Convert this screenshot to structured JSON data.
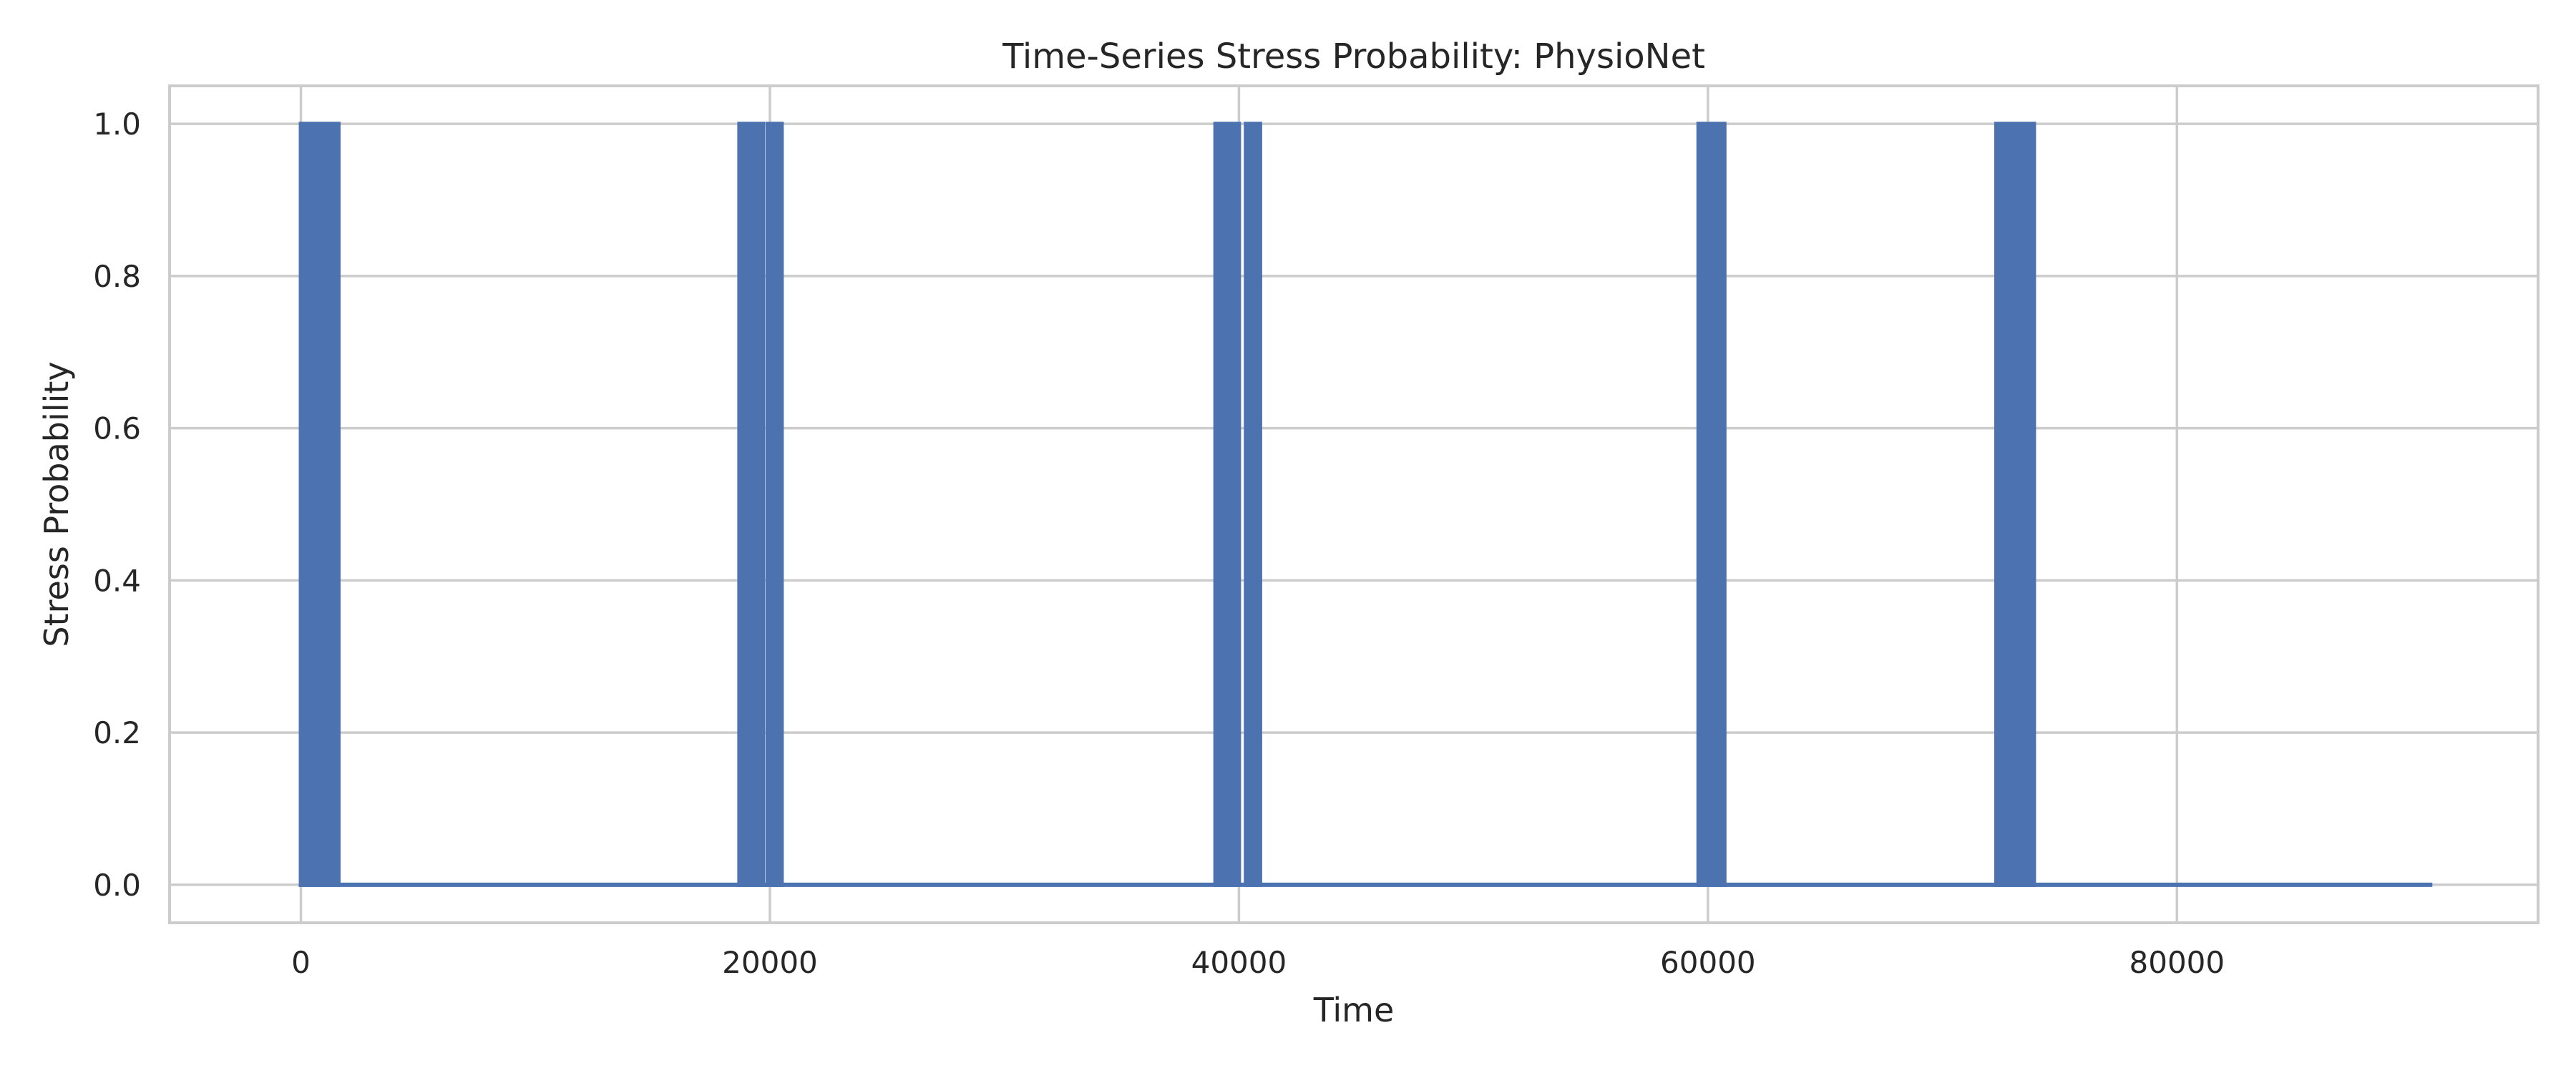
{
  "chart_data": {
    "type": "line",
    "title": "Time-Series Stress Probability: PhysioNet",
    "xlabel": "Time",
    "ylabel": "Stress Probability",
    "xlim": [
      -5600,
      95400
    ],
    "ylim": [
      -0.05,
      1.05
    ],
    "xticks": [
      0,
      20000,
      40000,
      60000,
      80000
    ],
    "xtick_labels": [
      "0",
      "20000",
      "40000",
      "60000",
      "80000"
    ],
    "yticks": [
      0.0,
      0.2,
      0.4,
      0.6,
      0.8,
      1.0
    ],
    "ytick_labels": [
      "0.0",
      "0.2",
      "0.4",
      "0.6",
      "0.8",
      "1.0"
    ],
    "grid": true,
    "series": [
      {
        "color": "#4c72b0",
        "x_range": [
          0,
          90800
        ],
        "baseline": 0.0,
        "high_value": 1.0,
        "stress_intervals": [
          [
            0,
            1000
          ],
          [
            1150,
            1600
          ],
          [
            18700,
            19700
          ],
          [
            19900,
            20500
          ],
          [
            39000,
            40000
          ],
          [
            40300,
            40900
          ],
          [
            59600,
            60700
          ],
          [
            72300,
            73900
          ]
        ]
      }
    ]
  }
}
